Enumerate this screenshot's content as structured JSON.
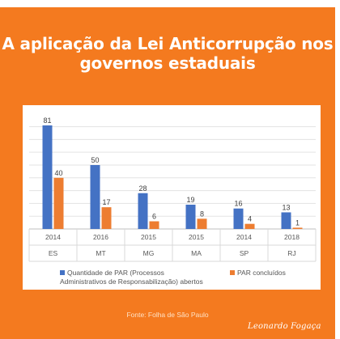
{
  "title_lines": [
    "A aplicação da Lei Anticorrupção nos",
    "governos estaduais"
  ],
  "colors": {
    "background": "#f47a1f",
    "series_opened": "#4472c4",
    "series_concluded": "#ed7d31"
  },
  "chart_data": {
    "type": "bar",
    "categories": [
      {
        "year": "2014",
        "state": "ES"
      },
      {
        "year": "2016",
        "state": "MT"
      },
      {
        "year": "2015",
        "state": "MG"
      },
      {
        "year": "2015",
        "state": "MA"
      },
      {
        "year": "2014",
        "state": "SP"
      },
      {
        "year": "2018",
        "state": "RJ"
      }
    ],
    "series": [
      {
        "name": "Quantidade de PAR (Processos Administrativos de Responsabilização) abertos",
        "values": [
          81,
          50,
          28,
          19,
          16,
          13
        ]
      },
      {
        "name": "PAR concluídos",
        "values": [
          40,
          17,
          6,
          8,
          4,
          1
        ]
      }
    ],
    "ylim": [
      0,
      81
    ],
    "grid": true,
    "legend_position": "bottom"
  },
  "legend": {
    "opened_line1": "Quantidade de PAR (Processos",
    "opened_line2": "Administrativos de Responsabilização) abertos",
    "concluded": "PAR concluídos"
  },
  "source": "Fonte: Folha de São Paulo",
  "signature": "Leonardo Fogaça"
}
